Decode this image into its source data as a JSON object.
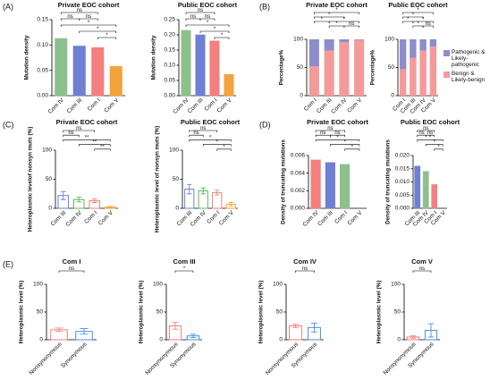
{
  "panel_labels": [
    "(A)",
    "(B)",
    "(C)",
    "(D)",
    "(E)"
  ],
  "chart_data": [
    {
      "type": "bar",
      "title": "Private EOC cohort",
      "ylabel": "Mutation density",
      "categories": [
        "Com IV",
        "Com III",
        "Com I",
        "Com V"
      ],
      "values": [
        0.113,
        0.098,
        0.095,
        0.058
      ],
      "colors": [
        "#8dc08d",
        "#6f7fd3",
        "#f47f7f",
        "#f2a33a"
      ],
      "ylim": [
        0,
        0.15
      ],
      "yticks": [
        {
          "value": 0,
          "label": "0.00"
        },
        {
          "value": 0.05,
          "label": "0.05"
        },
        {
          "value": 0.1,
          "label": "0.10"
        },
        {
          "value": 0.15,
          "label": "0.15"
        }
      ],
      "annotations": [
        {
          "text": "ns",
          "span": [
            0,
            2
          ]
        },
        {
          "text": "ns",
          "span": [
            0,
            1
          ]
        },
        {
          "text": "ns",
          "span": [
            1,
            2
          ]
        },
        {
          "text": "*",
          "span": [
            0,
            3
          ]
        },
        {
          "text": "*",
          "span": [
            1,
            3
          ]
        },
        {
          "text": "*",
          "span": [
            2,
            3
          ]
        }
      ]
    },
    {
      "type": "bar",
      "title": "Public EOC cohort",
      "ylabel": "Mutation density",
      "categories": [
        "Com IV",
        "Com III",
        "Com I",
        "Com V"
      ],
      "values": [
        0.215,
        0.2,
        0.18,
        0.07
      ],
      "colors": [
        "#8dc08d",
        "#6f7fd3",
        "#f47f7f",
        "#f2a33a"
      ],
      "ylim": [
        0,
        0.25
      ],
      "yticks": [
        {
          "value": 0,
          "label": "0.00"
        },
        {
          "value": 0.05,
          "label": "0.05"
        },
        {
          "value": 0.1,
          "label": "0.10"
        },
        {
          "value": 0.15,
          "label": "0.15"
        },
        {
          "value": 0.2,
          "label": "0.20"
        },
        {
          "value": 0.25,
          "label": "0.25"
        }
      ],
      "annotations": [
        {
          "text": "ns",
          "span": [
            0,
            2
          ]
        },
        {
          "text": "ns",
          "span": [
            0,
            1
          ]
        },
        {
          "text": "ns",
          "span": [
            1,
            2
          ]
        },
        {
          "text": "*",
          "span": [
            0,
            3
          ]
        },
        {
          "text": "*",
          "span": [
            1,
            3
          ]
        },
        {
          "text": "*",
          "span": [
            2,
            3
          ]
        }
      ]
    },
    {
      "type": "stacked_bar",
      "title": "Private EOC cohort",
      "ylabel": "Percentage%",
      "categories": [
        "Com I",
        "Com III",
        "Com IV",
        "Com V"
      ],
      "series": [
        {
          "name": "Benign & Likely-benign",
          "color": "#f59a9a",
          "values": [
            52,
            80,
            95,
            99
          ]
        },
        {
          "name": "Pathogenic & Likely-pathogenic",
          "color": "#8d8dcc",
          "values": [
            48,
            20,
            5,
            1
          ]
        }
      ],
      "ylim": [
        0,
        100
      ],
      "yticks": [
        0,
        50,
        100
      ],
      "annotations": [
        {
          "text": "*",
          "span": [
            0,
            3
          ]
        },
        {
          "text": "*",
          "span": [
            0,
            2
          ]
        },
        {
          "text": "*",
          "span": [
            0,
            1
          ]
        },
        {
          "text": "*",
          "span": [
            1,
            3
          ]
        },
        {
          "text": "*",
          "span": [
            1,
            2
          ]
        },
        {
          "text": "ns",
          "span": [
            2,
            3
          ]
        }
      ]
    },
    {
      "type": "stacked_bar",
      "title": "Public EOC cohort",
      "ylabel": "Percentage%",
      "categories": [
        "Com I",
        "Com III",
        "Com IV",
        "Com V"
      ],
      "series": [
        {
          "name": "Benign & Likely-benign",
          "color": "#f59a9a",
          "values": [
            47,
            67,
            80,
            87
          ]
        },
        {
          "name": "Pathogenic & Likely-pathogenic",
          "color": "#8d8dcc",
          "values": [
            53,
            33,
            20,
            13
          ]
        }
      ],
      "ylim": [
        0,
        100
      ],
      "yticks": [
        0,
        50,
        100
      ],
      "legend": "outside-right",
      "annotations": [
        {
          "text": "*",
          "span": [
            0,
            3
          ]
        },
        {
          "text": "*",
          "span": [
            0,
            2
          ]
        },
        {
          "text": "*",
          "span": [
            0,
            1
          ]
        },
        {
          "text": "*",
          "span": [
            1,
            3
          ]
        },
        {
          "text": "*",
          "span": [
            1,
            2
          ]
        },
        {
          "text": "ns",
          "span": [
            2,
            3
          ]
        }
      ]
    },
    {
      "type": "bar",
      "bar_style": "outline",
      "title": "Private EOC cohort",
      "ylabel": "Heteroplasmic levelof nonsyn muts (%)",
      "categories": [
        "Com III",
        "Com IV",
        "Com I",
        "Com V"
      ],
      "values": [
        22,
        15,
        13,
        2
      ],
      "errors": [
        7,
        4,
        3,
        1
      ],
      "colors": [
        "#6f7fd3",
        "#5cb85c",
        "#f47f7f",
        "#f2a33a"
      ],
      "ylim": [
        0,
        100
      ],
      "yticks": [
        0,
        50,
        100
      ],
      "annotations": [
        {
          "text": "ns",
          "span": [
            0,
            2
          ]
        },
        {
          "text": "ns",
          "span": [
            0,
            1
          ]
        },
        {
          "text": "**",
          "span": [
            0,
            3
          ]
        },
        {
          "text": "**",
          "span": [
            1,
            3
          ]
        },
        {
          "text": "**",
          "span": [
            2,
            3
          ]
        }
      ]
    },
    {
      "type": "bar",
      "bar_style": "outline",
      "title": "Public EOC cohort",
      "ylabel": "Heteroplasmic level of nonsyn muts (%)",
      "categories": [
        "Com III",
        "Com IV",
        "Com I",
        "Com V"
      ],
      "values": [
        33,
        30,
        27,
        7
      ],
      "errors": [
        8,
        5,
        4,
        3
      ],
      "colors": [
        "#6f7fd3",
        "#5cb85c",
        "#f47f7f",
        "#f2a33a"
      ],
      "ylim": [
        0,
        100
      ],
      "yticks": [
        0,
        50,
        100
      ],
      "annotations": [
        {
          "text": "ns",
          "span": [
            0,
            2
          ]
        },
        {
          "text": "ns",
          "span": [
            0,
            1
          ]
        },
        {
          "text": "*",
          "span": [
            0,
            3
          ]
        },
        {
          "text": "*",
          "span": [
            1,
            3
          ]
        },
        {
          "text": "*",
          "span": [
            2,
            3
          ]
        }
      ]
    },
    {
      "type": "bar",
      "title": "Private EOC cohort",
      "ylabel": "Density of truncating mutations",
      "categories": [
        "Com IV",
        "Com III",
        "Com I",
        "Com V"
      ],
      "values": [
        0.0055,
        0.0052,
        0.005,
        0
      ],
      "colors": [
        "#f47f7f",
        "#6f7fd3",
        "#8dc08d",
        "#f2a33a"
      ],
      "ylim": [
        0,
        0.006
      ],
      "yticks": [
        {
          "value": 0,
          "label": "0.000"
        },
        {
          "value": 0.002,
          "label": "0.002"
        },
        {
          "value": 0.004,
          "label": "0.004"
        },
        {
          "value": 0.006,
          "label": "0.006"
        }
      ],
      "annotations": [
        {
          "text": "ns",
          "span": [
            0,
            2
          ]
        },
        {
          "text": "ns",
          "span": [
            0,
            1
          ]
        },
        {
          "text": "ns",
          "span": [
            1,
            2
          ]
        },
        {
          "text": "*",
          "span": [
            0,
            3
          ]
        },
        {
          "text": "*",
          "span": [
            1,
            3
          ]
        },
        {
          "text": "*",
          "span": [
            2,
            3
          ]
        }
      ]
    },
    {
      "type": "bar",
      "title": "Public EOC cohort",
      "ylabel": "Density of truncating mutations",
      "categories": [
        "Com III",
        "Com IV",
        "Com I",
        "Com V"
      ],
      "values": [
        0.016,
        0.014,
        0.009,
        0
      ],
      "colors": [
        "#6f7fd3",
        "#8dc08d",
        "#f47f7f",
        "#f2a33a"
      ],
      "ylim": [
        0,
        0.02
      ],
      "yticks": [
        {
          "value": 0,
          "label": "0.000"
        },
        {
          "value": 0.005,
          "label": "0.005"
        },
        {
          "value": 0.01,
          "label": "0.010"
        },
        {
          "value": 0.015,
          "label": "0.015"
        },
        {
          "value": 0.02,
          "label": "0.020"
        }
      ],
      "annotations": [
        {
          "text": "ns",
          "span": [
            0,
            2
          ]
        },
        {
          "text": "ns",
          "span": [
            0,
            1
          ]
        },
        {
          "text": "ns",
          "span": [
            1,
            2
          ]
        },
        {
          "text": "*",
          "span": [
            0,
            3
          ]
        },
        {
          "text": "*",
          "span": [
            1,
            3
          ]
        },
        {
          "text": "*",
          "span": [
            2,
            3
          ]
        }
      ]
    },
    {
      "type": "bar",
      "bar_style": "outline",
      "title": "Com I",
      "ylabel": "Heteroplasmic level (%)",
      "categories": [
        "Nonsynonymous",
        "Synonymous"
      ],
      "values": [
        18,
        15
      ],
      "errors": [
        3,
        5
      ],
      "colors": [
        "#f47f7f",
        "#4a90e2"
      ],
      "ylim": [
        0,
        100
      ],
      "yticks": [
        0,
        50,
        100
      ],
      "annotations": [
        {
          "text": "ns",
          "span": [
            0,
            1
          ]
        }
      ]
    },
    {
      "type": "bar",
      "bar_style": "outline",
      "title": "Com III",
      "ylabel": "Heteroplasmic level (%)",
      "categories": [
        "Nonsynonymous",
        "Synonymous"
      ],
      "values": [
        25,
        7
      ],
      "errors": [
        6,
        3
      ],
      "colors": [
        "#f47f7f",
        "#4a90e2"
      ],
      "ylim": [
        0,
        100
      ],
      "yticks": [
        0,
        50,
        100
      ],
      "annotations": [
        {
          "text": "*",
          "span": [
            0,
            1
          ]
        }
      ]
    },
    {
      "type": "bar",
      "bar_style": "outline",
      "title": "Com IV",
      "ylabel": "Heteroplasmic level (%)",
      "categories": [
        "Nonsynonymous",
        "Synonymous"
      ],
      "values": [
        25,
        22
      ],
      "errors": [
        3,
        8
      ],
      "colors": [
        "#f47f7f",
        "#4a90e2"
      ],
      "ylim": [
        0,
        100
      ],
      "yticks": [
        0,
        50,
        100
      ],
      "annotations": [
        {
          "text": "ns",
          "span": [
            0,
            1
          ]
        }
      ]
    },
    {
      "type": "bar",
      "bar_style": "outline",
      "title": "Com V",
      "ylabel": "Heteroplasmic level (%)",
      "categories": [
        "Nonsynonymous",
        "Synonymous"
      ],
      "values": [
        5,
        17
      ],
      "errors": [
        2,
        12
      ],
      "colors": [
        "#f47f7f",
        "#4a90e2"
      ],
      "ylim": [
        0,
        100
      ],
      "yticks": [
        0,
        50,
        100
      ],
      "annotations": [
        {
          "text": "ns",
          "span": [
            0,
            1
          ]
        }
      ]
    }
  ]
}
